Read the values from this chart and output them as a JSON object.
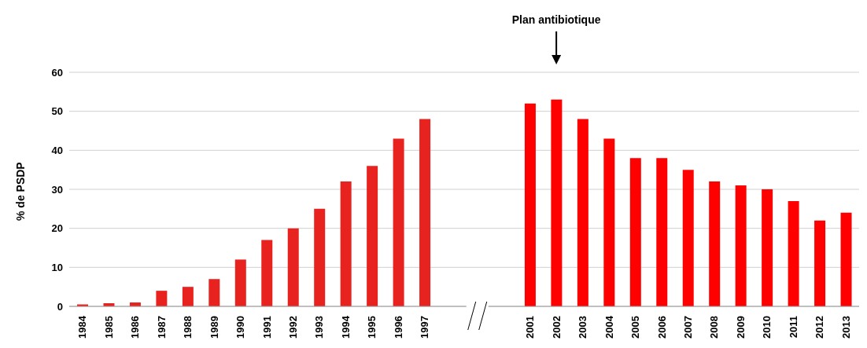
{
  "chart_data": {
    "type": "bar",
    "ylabel": "% de PSDP",
    "categories": [
      "1984",
      "1985",
      "1986",
      "1987",
      "1988",
      "1989",
      "1990",
      "1991",
      "1992",
      "1993",
      "1994",
      "1995",
      "1996",
      "1997",
      null,
      null,
      null,
      "2001",
      "2002",
      "2003",
      "2004",
      "2005",
      "2006",
      "2007",
      "2008",
      "2009",
      "2010",
      "2011",
      "2012",
      "2013"
    ],
    "values": [
      0.5,
      0.8,
      1,
      4,
      5,
      7,
      12,
      17,
      20,
      25,
      32,
      36,
      43,
      48,
      null,
      null,
      null,
      52,
      53,
      48,
      43,
      38,
      38,
      35,
      32,
      31,
      30,
      27,
      22,
      24
    ],
    "colors": [
      "#e8221f",
      "#e8221f",
      "#e8221f",
      "#e8221f",
      "#e8221f",
      "#e8221f",
      "#e8221f",
      "#e8221f",
      "#e8221f",
      "#e8221f",
      "#e8221f",
      "#e8221f",
      "#e8221f",
      "#e8221f",
      null,
      null,
      null,
      "#ff0000",
      "#ff0000",
      "#ff0000",
      "#ff0000",
      "#ff0000",
      "#ff0000",
      "#ff0000",
      "#ff0000",
      "#ff0000",
      "#ff0000",
      "#ff0000",
      "#ff0000",
      "#ff0000"
    ],
    "ylim": [
      0,
      60
    ],
    "yticks": [
      0,
      10,
      20,
      30,
      40,
      50,
      60
    ],
    "grid": "y",
    "annotations": [
      "Plan antibiotique"
    ]
  }
}
